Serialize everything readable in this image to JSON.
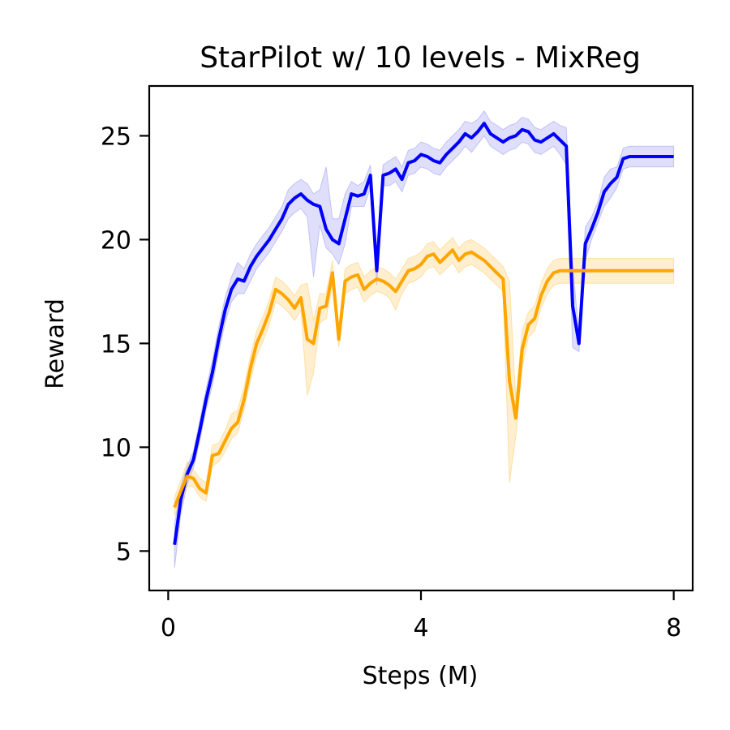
{
  "chart_data": {
    "type": "line",
    "title": "StarPilot w/ 10 levels - MixReg",
    "xlabel": "Steps (M)",
    "ylabel": "Reward",
    "xlim": [
      -0.3,
      8.3
    ],
    "ylim": [
      3.1,
      27.4
    ],
    "xticks": [
      0,
      4,
      8
    ],
    "yticks": [
      5,
      10,
      15,
      20,
      25
    ],
    "grid": false,
    "legend": "none",
    "series": [
      {
        "color": "#0000ff",
        "band_color": "#8080f0",
        "x": [
          0.1,
          0.2,
          0.3,
          0.4,
          0.5,
          0.6,
          0.7,
          0.8,
          0.9,
          1.0,
          1.1,
          1.2,
          1.3,
          1.4,
          1.5,
          1.6,
          1.7,
          1.8,
          1.9,
          2.0,
          2.1,
          2.2,
          2.3,
          2.4,
          2.5,
          2.6,
          2.7,
          2.8,
          2.9,
          3.0,
          3.1,
          3.2,
          3.3,
          3.4,
          3.5,
          3.6,
          3.7,
          3.8,
          3.9,
          4.0,
          4.1,
          4.2,
          4.3,
          4.4,
          4.5,
          4.6,
          4.7,
          4.8,
          4.9,
          5.0,
          5.1,
          5.2,
          5.3,
          5.4,
          5.5,
          5.6,
          5.7,
          5.8,
          5.9,
          6.0,
          6.1,
          6.2,
          6.3,
          6.4,
          6.5,
          6.6,
          6.7,
          6.8,
          6.9,
          7.0,
          7.1,
          7.2,
          7.3,
          7.4,
          7.5,
          7.6,
          7.7,
          7.8,
          7.9,
          8.0
        ],
        "y": [
          5.3,
          7.5,
          8.7,
          9.4,
          10.8,
          12.3,
          13.6,
          15.2,
          16.6,
          17.6,
          18.1,
          18.0,
          18.7,
          19.2,
          19.6,
          20.0,
          20.5,
          21.0,
          21.7,
          22.0,
          22.2,
          21.9,
          21.7,
          21.6,
          20.5,
          20.0,
          19.8,
          21.0,
          22.2,
          22.1,
          22.2,
          23.1,
          18.5,
          23.1,
          23.2,
          23.4,
          22.9,
          23.7,
          23.8,
          24.1,
          24.0,
          23.8,
          23.7,
          24.1,
          24.4,
          24.7,
          25.1,
          24.9,
          25.2,
          25.6,
          25.1,
          24.9,
          24.7,
          24.9,
          25.0,
          25.3,
          25.2,
          24.8,
          24.7,
          24.9,
          25.1,
          24.8,
          24.5,
          16.8,
          15.0,
          19.8,
          20.5,
          21.3,
          22.3,
          22.7,
          23.0,
          23.9,
          24.0,
          24.0,
          24.0,
          24.0,
          24.0,
          24.0,
          24.0,
          24.0
        ],
        "lower": [
          4.2,
          6.8,
          8.2,
          9.0,
          10.3,
          11.8,
          13.0,
          14.6,
          16.0,
          17.0,
          17.4,
          17.4,
          18.0,
          18.6,
          19.0,
          19.4,
          19.9,
          20.4,
          21.0,
          21.3,
          21.5,
          21.1,
          18.2,
          20.7,
          19.6,
          19.3,
          18.8,
          19.8,
          21.6,
          21.6,
          21.6,
          22.5,
          17.8,
          22.6,
          22.6,
          22.8,
          22.3,
          23.1,
          23.2,
          23.5,
          23.4,
          23.2,
          23.1,
          23.5,
          23.8,
          24.1,
          24.5,
          24.2,
          24.6,
          25.0,
          24.5,
          24.3,
          24.1,
          24.3,
          24.4,
          24.7,
          24.6,
          24.2,
          24.1,
          24.3,
          24.5,
          24.1,
          23.6,
          14.8,
          14.6,
          19.0,
          20.0,
          20.8,
          21.6,
          22.0,
          22.5,
          23.4,
          23.5,
          23.5,
          23.5,
          23.5,
          23.5,
          23.5,
          23.5,
          23.5
        ],
        "upper": [
          6.3,
          8.1,
          9.1,
          9.8,
          11.3,
          12.8,
          14.2,
          15.8,
          17.2,
          18.2,
          18.9,
          18.6,
          19.3,
          19.8,
          20.2,
          20.6,
          21.1,
          21.6,
          22.4,
          22.7,
          22.9,
          22.7,
          22.2,
          22.4,
          23.5,
          21.0,
          21.0,
          22.2,
          22.8,
          22.6,
          22.8,
          23.6,
          19.2,
          23.6,
          23.8,
          24.0,
          23.5,
          24.3,
          24.4,
          24.7,
          24.6,
          24.4,
          24.3,
          24.7,
          25.0,
          25.3,
          25.7,
          25.6,
          25.8,
          26.2,
          25.7,
          25.5,
          25.3,
          25.5,
          25.6,
          25.9,
          25.8,
          25.4,
          25.3,
          25.5,
          25.7,
          25.5,
          25.4,
          18.8,
          15.4,
          20.6,
          21.1,
          21.8,
          23.0,
          23.4,
          23.5,
          24.4,
          24.5,
          24.5,
          24.5,
          24.5,
          24.5,
          24.5,
          24.5,
          24.5
        ]
      },
      {
        "color": "#ffa500",
        "band_color": "#ffbf40",
        "x": [
          0.1,
          0.2,
          0.3,
          0.4,
          0.5,
          0.6,
          0.7,
          0.8,
          0.9,
          1.0,
          1.1,
          1.2,
          1.3,
          1.4,
          1.5,
          1.6,
          1.7,
          1.8,
          1.9,
          2.0,
          2.1,
          2.2,
          2.3,
          2.4,
          2.5,
          2.6,
          2.7,
          2.8,
          2.9,
          3.0,
          3.1,
          3.2,
          3.3,
          3.4,
          3.5,
          3.6,
          3.7,
          3.8,
          3.9,
          4.0,
          4.1,
          4.2,
          4.3,
          4.4,
          4.5,
          4.6,
          4.7,
          4.8,
          4.9,
          5.0,
          5.1,
          5.2,
          5.3,
          5.4,
          5.5,
          5.6,
          5.7,
          5.8,
          5.9,
          6.0,
          6.1,
          6.2,
          6.3,
          6.4,
          6.5,
          6.6,
          6.7,
          6.8,
          6.9,
          7.0,
          7.1,
          7.2,
          7.3,
          7.4,
          7.5,
          7.6,
          7.7,
          7.8,
          7.9,
          8.0
        ],
        "y": [
          7.1,
          7.9,
          8.6,
          8.5,
          8.0,
          7.8,
          9.6,
          9.7,
          10.3,
          10.9,
          11.2,
          12.3,
          13.8,
          15.0,
          15.7,
          16.5,
          17.6,
          17.4,
          17.1,
          16.7,
          17.2,
          15.2,
          15.0,
          16.7,
          16.8,
          18.4,
          15.2,
          18.0,
          18.2,
          18.3,
          17.6,
          17.9,
          18.1,
          18.0,
          17.8,
          17.5,
          18.0,
          18.5,
          18.6,
          18.8,
          19.2,
          19.3,
          18.9,
          19.2,
          19.5,
          19.0,
          19.3,
          19.4,
          19.2,
          19.0,
          18.7,
          18.4,
          18.1,
          13.2,
          11.4,
          14.7,
          15.9,
          16.2,
          17.3,
          18.0,
          18.4,
          18.5,
          18.5,
          18.5,
          18.5,
          18.5,
          18.5,
          18.5,
          18.5,
          18.5,
          18.5,
          18.5,
          18.5,
          18.5,
          18.5,
          18.5,
          18.5,
          18.5,
          18.5,
          18.5
        ],
        "lower": [
          6.7,
          7.4,
          8.1,
          8.1,
          7.6,
          7.4,
          9.1,
          9.3,
          9.8,
          10.4,
          10.7,
          11.8,
          13.2,
          14.4,
          15.1,
          15.9,
          17.0,
          16.8,
          16.5,
          16.1,
          16.6,
          12.5,
          13.6,
          16.0,
          16.2,
          17.8,
          14.8,
          17.4,
          17.6,
          17.7,
          17.0,
          17.3,
          17.5,
          17.4,
          17.2,
          16.6,
          17.4,
          17.9,
          18.0,
          18.2,
          18.6,
          18.7,
          18.3,
          18.6,
          18.9,
          18.4,
          18.7,
          18.8,
          18.6,
          18.4,
          18.1,
          17.8,
          17.5,
          8.3,
          10.5,
          13.8,
          15.3,
          15.6,
          16.7,
          17.4,
          17.8,
          17.9,
          17.9,
          17.9,
          17.9,
          17.9,
          17.9,
          17.9,
          17.9,
          17.9,
          17.9,
          17.9,
          17.9,
          17.9,
          17.9,
          17.9,
          17.9,
          17.9,
          17.9,
          17.9
        ],
        "upper": [
          7.6,
          8.4,
          9.3,
          8.9,
          8.5,
          8.3,
          10.1,
          10.2,
          10.8,
          11.6,
          11.8,
          12.9,
          14.4,
          15.6,
          16.3,
          17.1,
          18.2,
          18.0,
          17.7,
          17.3,
          17.8,
          17.9,
          16.1,
          17.4,
          17.4,
          19.0,
          15.6,
          18.6,
          18.8,
          18.9,
          18.2,
          18.5,
          18.7,
          18.6,
          18.4,
          18.1,
          18.6,
          19.1,
          19.2,
          19.4,
          19.8,
          19.9,
          19.5,
          19.8,
          20.1,
          19.6,
          19.9,
          20.0,
          19.8,
          19.6,
          19.3,
          19.0,
          18.7,
          18.0,
          12.3,
          15.6,
          16.5,
          16.8,
          17.9,
          18.6,
          19.0,
          19.1,
          19.1,
          19.1,
          19.1,
          19.1,
          19.1,
          19.1,
          19.1,
          19.1,
          19.1,
          19.1,
          19.1,
          19.1,
          19.1,
          19.1,
          19.1,
          19.1,
          19.1,
          19.1
        ]
      }
    ]
  }
}
